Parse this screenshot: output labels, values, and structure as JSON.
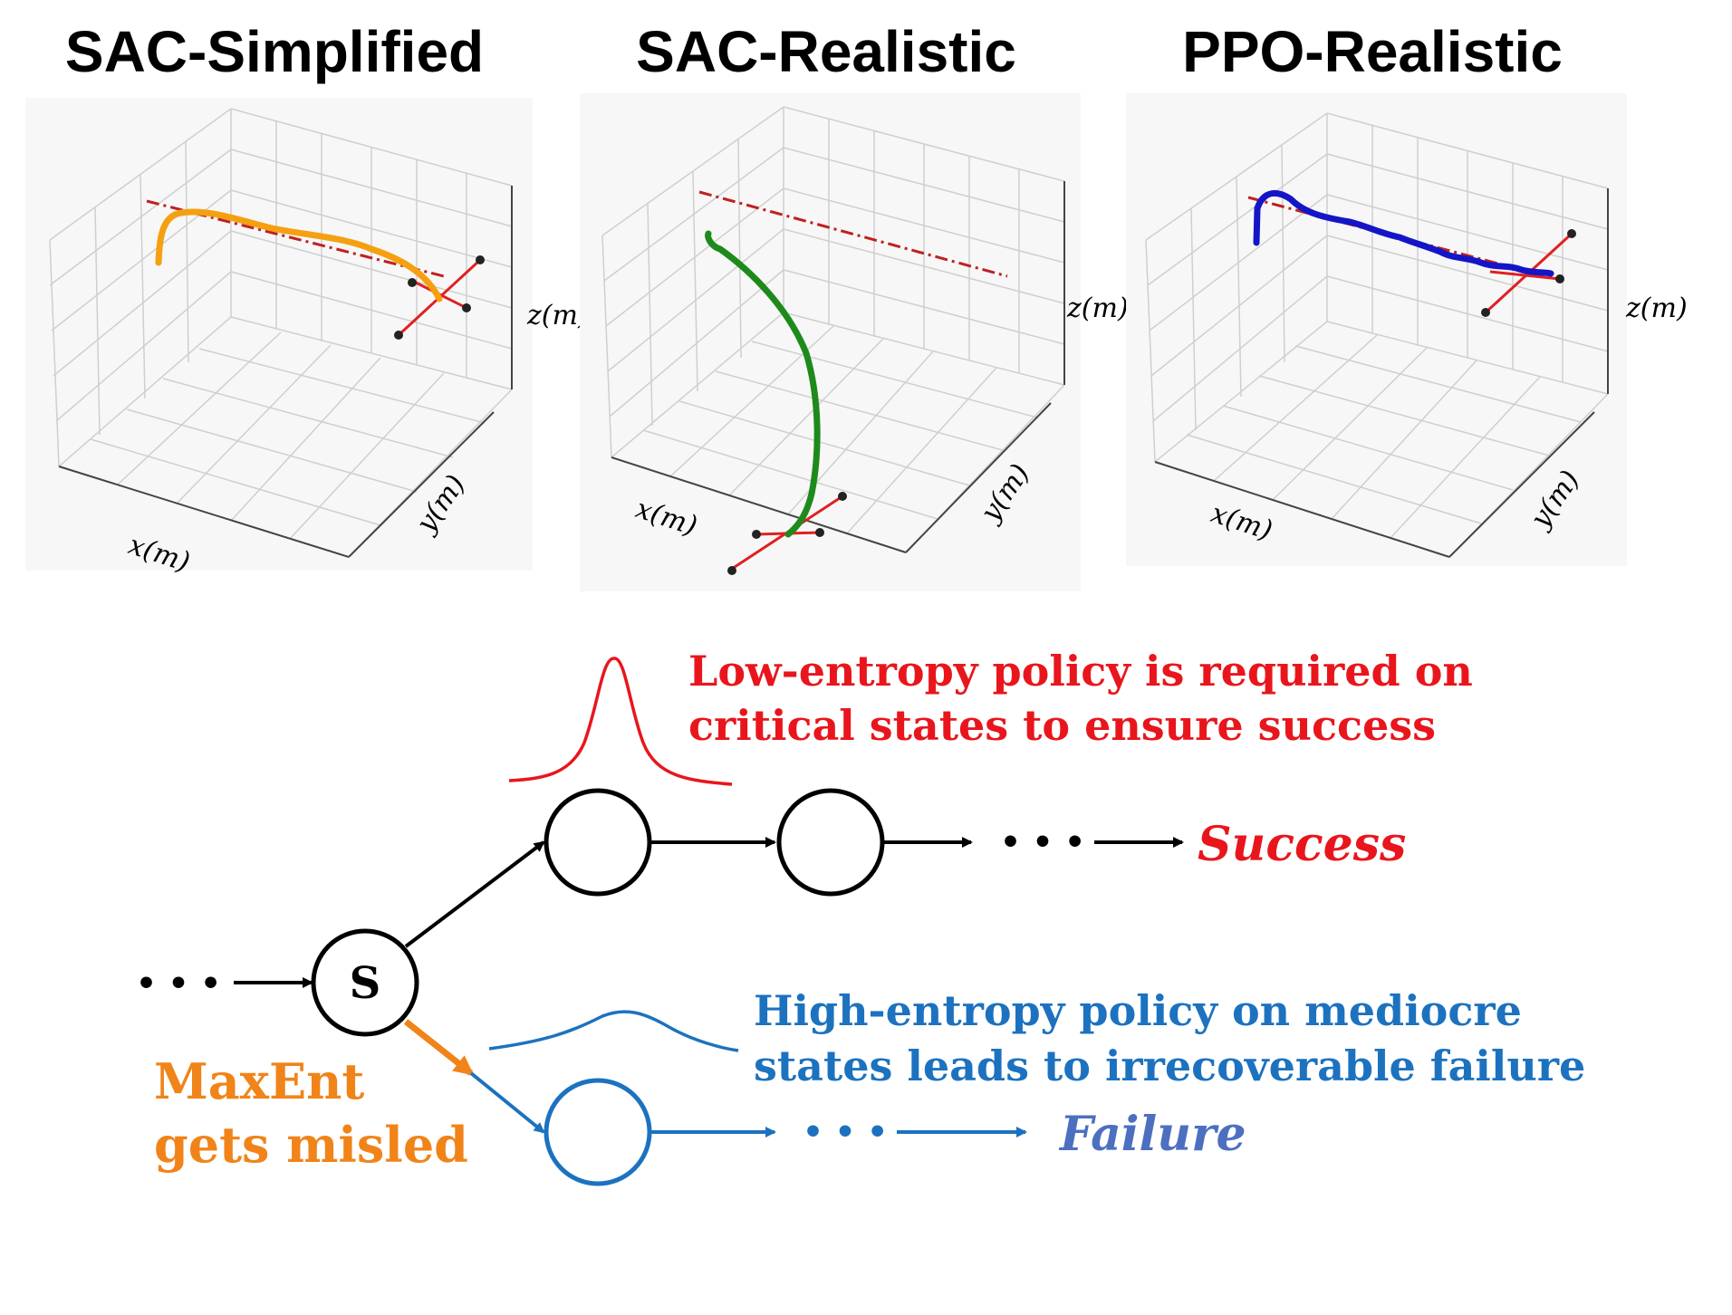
{
  "panels": [
    {
      "title": "SAC-Simplified",
      "x_label": "x(m)",
      "y_label": "y(m)",
      "z_label": "z(m)",
      "trajectory_color": "#f5a011"
    },
    {
      "title": "SAC-Realistic",
      "x_label": "x(m)",
      "y_label": "y(m)",
      "z_label": "z(m)",
      "trajectory_color": "#1f8a1c"
    },
    {
      "title": "PPO-Realistic",
      "x_label": "x(m)",
      "y_label": "y(m)",
      "z_label": "z(m)",
      "trajectory_color": "#1515c8"
    }
  ],
  "diagram": {
    "low_entropy_line1": "Low-entropy policy is required on",
    "low_entropy_line2": "critical states to ensure success",
    "high_entropy_line1": "High-entropy policy on mediocre",
    "high_entropy_line2": "states leads to irrecoverable failure",
    "maxent_line1": "MaxEnt",
    "maxent_line2": "gets misled",
    "state_label": "S",
    "success_label": "Success",
    "failure_label": "Failure",
    "ellipsis": "• • •",
    "colors": {
      "red": "#e8161c",
      "blue": "#1c72bf",
      "orange": "#f08419",
      "failure": "#4c6fc0",
      "black": "#000000"
    }
  }
}
